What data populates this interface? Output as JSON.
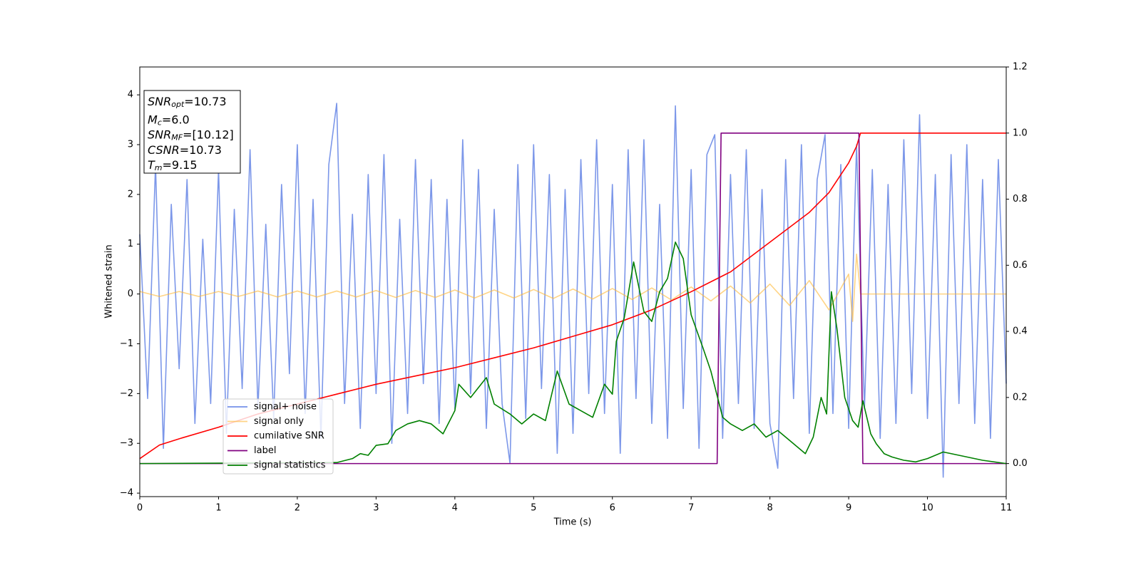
{
  "chart_data": {
    "type": "line",
    "xlabel": "Time (s)",
    "ylabel": "Whitened strain",
    "xlim": [
      0,
      11
    ],
    "ylim": [
      -4.07,
      4.56
    ],
    "y2lim": [
      -0.1,
      1.2
    ],
    "xticks": [
      0,
      1,
      2,
      3,
      4,
      5,
      6,
      7,
      8,
      9,
      10,
      11
    ],
    "yticks": [
      {
        "value": -4,
        "label": "−4"
      },
      {
        "value": -3,
        "label": "−3"
      },
      {
        "value": -2,
        "label": "−2"
      },
      {
        "value": -1,
        "label": "−1"
      },
      0,
      1,
      2,
      3,
      4
    ],
    "y2ticks": [
      {
        "value": 0,
        "label": "0.0"
      },
      {
        "value": 0.2,
        "label": "0.2"
      },
      {
        "value": 0.4,
        "label": "0.4"
      },
      {
        "value": 0.6,
        "label": "0.6"
      },
      {
        "value": 0.8,
        "label": "0.8"
      },
      {
        "value": 1.0,
        "label": "1.0"
      },
      {
        "value": 1.2,
        "label": "1.2"
      }
    ],
    "grid": false,
    "legend": "lower left",
    "annotations": [
      {
        "text": "SNR",
        "sub": "opt",
        "value": "=10.73"
      },
      {
        "text": "M",
        "sub": "c",
        "value": "=6.0"
      },
      {
        "text": "SNR",
        "sub": "MF",
        "value": "=[10.12]"
      },
      {
        "text": "CSNR",
        "value": "=10.73"
      },
      {
        "text": "T",
        "sub": "m",
        "value": "=9.15"
      }
    ],
    "series": [
      {
        "name": "signal+ noise",
        "color": "#7591e8",
        "x": [
          0,
          0.1,
          0.2,
          0.3,
          0.4,
          0.5,
          0.6,
          0.7,
          0.8,
          0.9,
          1,
          1.1,
          1.2,
          1.3,
          1.4,
          1.5,
          1.6,
          1.7,
          1.8,
          1.9,
          2,
          2.1,
          2.2,
          2.3,
          2.4,
          2.5,
          2.6,
          2.7,
          2.8,
          2.9,
          3,
          3.1,
          3.2,
          3.3,
          3.4,
          3.5,
          3.6,
          3.7,
          3.8,
          3.9,
          4,
          4.1,
          4.2,
          4.3,
          4.4,
          4.5,
          4.6,
          4.7,
          4.8,
          4.9,
          5,
          5.1,
          5.2,
          5.3,
          5.4,
          5.5,
          5.6,
          5.7,
          5.8,
          5.9,
          6,
          6.1,
          6.2,
          6.3,
          6.4,
          6.5,
          6.6,
          6.7,
          6.8,
          6.9,
          7,
          7.1,
          7.2,
          7.3,
          7.4,
          7.5,
          7.6,
          7.7,
          7.8,
          7.9,
          8,
          8.1,
          8.2,
          8.3,
          8.4,
          8.5,
          8.6,
          8.7,
          8.8,
          8.9,
          9,
          9.1,
          9.2,
          9.3,
          9.4,
          9.5,
          9.6,
          9.7,
          9.8,
          9.9,
          10,
          10.1,
          10.2,
          10.3,
          10.4,
          10.5,
          10.6,
          10.7,
          10.8,
          10.9,
          11
        ],
        "values": [
          1.2,
          -2.1,
          2.6,
          -3.1,
          1.8,
          -1.5,
          2.3,
          -2.6,
          1.1,
          -2.2,
          2.5,
          -2.8,
          1.7,
          -1.9,
          2.9,
          -2.3,
          1.4,
          -2.5,
          2.2,
          -1.6,
          3.0,
          -2.4,
          1.9,
          -2.9,
          2.6,
          3.83,
          -2.2,
          1.6,
          -2.7,
          2.4,
          -2.0,
          2.8,
          -3.0,
          1.5,
          -2.4,
          2.7,
          -1.8,
          2.3,
          -2.6,
          1.9,
          -2.3,
          3.1,
          -2.0,
          2.5,
          -2.7,
          1.7,
          -2.2,
          -3.4,
          2.6,
          -2.5,
          3.0,
          -1.9,
          2.4,
          -3.2,
          2.1,
          -2.8,
          2.7,
          -2.0,
          3.1,
          -2.4,
          2.2,
          -3.2,
          2.9,
          -2.1,
          3.1,
          -2.6,
          1.8,
          -2.9,
          3.78,
          -2.3,
          2.5,
          -3.1,
          2.8,
          3.2,
          -2.9,
          2.4,
          -2.2,
          2.9,
          -2.7,
          2.1,
          -2.6,
          -3.5,
          2.7,
          -2.1,
          3.0,
          -2.8,
          2.3,
          3.2,
          -2.4,
          2.6,
          -2.7,
          3.0,
          -2.3,
          2.5,
          -2.9,
          2.2,
          -2.6,
          3.1,
          -2.0,
          3.6,
          -2.5,
          2.4,
          -3.68,
          2.8,
          -2.2,
          3.0,
          -2.6,
          2.3,
          -2.9,
          2.7,
          -1.8
        ]
      },
      {
        "name": "signal only",
        "color": "#ffb833",
        "x": [
          0,
          0.25,
          0.5,
          0.75,
          1,
          1.25,
          1.5,
          1.75,
          2,
          2.25,
          2.5,
          2.75,
          3,
          3.25,
          3.5,
          3.75,
          4,
          4.25,
          4.5,
          4.75,
          5,
          5.25,
          5.5,
          5.75,
          6,
          6.25,
          6.5,
          6.75,
          7,
          7.25,
          7.5,
          7.75,
          8,
          8.25,
          8.5,
          8.75,
          9,
          9.05,
          9.1,
          9.15,
          11
        ],
        "values": [
          0.05,
          -0.05,
          0.05,
          -0.05,
          0.05,
          -0.05,
          0.06,
          -0.06,
          0.06,
          -0.06,
          0.06,
          -0.06,
          0.07,
          -0.07,
          0.07,
          -0.07,
          0.08,
          -0.08,
          0.08,
          -0.08,
          0.09,
          -0.09,
          0.1,
          -0.1,
          0.11,
          -0.11,
          0.12,
          -0.12,
          0.14,
          -0.14,
          0.16,
          -0.18,
          0.2,
          -0.23,
          0.27,
          -0.32,
          0.4,
          -0.55,
          0.8,
          0,
          0
        ]
      },
      {
        "name": "cumilative SNR",
        "color": "#ff0000",
        "axis": "y2",
        "x": [
          0,
          0.25,
          0.5,
          1,
          1.5,
          2,
          2.5,
          3,
          3.5,
          4,
          4.5,
          5,
          5.5,
          6,
          6.5,
          7,
          7.5,
          8,
          8.5,
          8.75,
          9,
          9.1,
          9.15,
          11
        ],
        "values": [
          0.015,
          0.056,
          0.075,
          0.11,
          0.15,
          0.18,
          0.21,
          0.24,
          0.265,
          0.29,
          0.32,
          0.35,
          0.385,
          0.42,
          0.465,
          0.52,
          0.58,
          0.67,
          0.76,
          0.82,
          0.91,
          0.96,
          1.0,
          1.0
        ]
      },
      {
        "name": "label",
        "color": "#800080",
        "axis": "y2",
        "x": [
          0,
          7.33,
          7.38,
          9.13,
          9.18,
          11
        ],
        "values": [
          0,
          0,
          1,
          1,
          0,
          0
        ]
      },
      {
        "name": "signal statistics",
        "color": "#008000",
        "axis": "y2",
        "x": [
          0,
          2.5,
          2.7,
          2.8,
          2.9,
          3.0,
          3.15,
          3.25,
          3.4,
          3.55,
          3.7,
          3.85,
          4.0,
          4.05,
          4.2,
          4.4,
          4.5,
          4.7,
          4.85,
          5.0,
          5.15,
          5.3,
          5.45,
          5.6,
          5.75,
          5.9,
          6.0,
          6.05,
          6.15,
          6.27,
          6.4,
          6.5,
          6.6,
          6.7,
          6.8,
          6.9,
          7.0,
          7.15,
          7.25,
          7.4,
          7.5,
          7.65,
          7.8,
          7.95,
          8.1,
          8.25,
          8.45,
          8.55,
          8.65,
          8.72,
          8.78,
          8.85,
          8.95,
          9.05,
          9.12,
          9.18,
          9.28,
          9.35,
          9.45,
          9.55,
          9.7,
          9.85,
          10.0,
          10.2,
          10.4,
          10.7,
          11
        ],
        "values": [
          0,
          0.003,
          0.015,
          0.03,
          0.025,
          0.055,
          0.06,
          0.1,
          0.12,
          0.13,
          0.12,
          0.09,
          0.16,
          0.24,
          0.2,
          0.26,
          0.18,
          0.15,
          0.12,
          0.15,
          0.13,
          0.28,
          0.18,
          0.16,
          0.14,
          0.24,
          0.21,
          0.37,
          0.44,
          0.61,
          0.46,
          0.43,
          0.52,
          0.56,
          0.67,
          0.62,
          0.45,
          0.35,
          0.28,
          0.14,
          0.12,
          0.1,
          0.12,
          0.08,
          0.1,
          0.07,
          0.03,
          0.08,
          0.2,
          0.15,
          0.52,
          0.41,
          0.2,
          0.13,
          0.11,
          0.19,
          0.09,
          0.06,
          0.03,
          0.02,
          0.01,
          0.005,
          0.015,
          0.035,
          0.025,
          0.01,
          0.0
        ]
      }
    ]
  }
}
